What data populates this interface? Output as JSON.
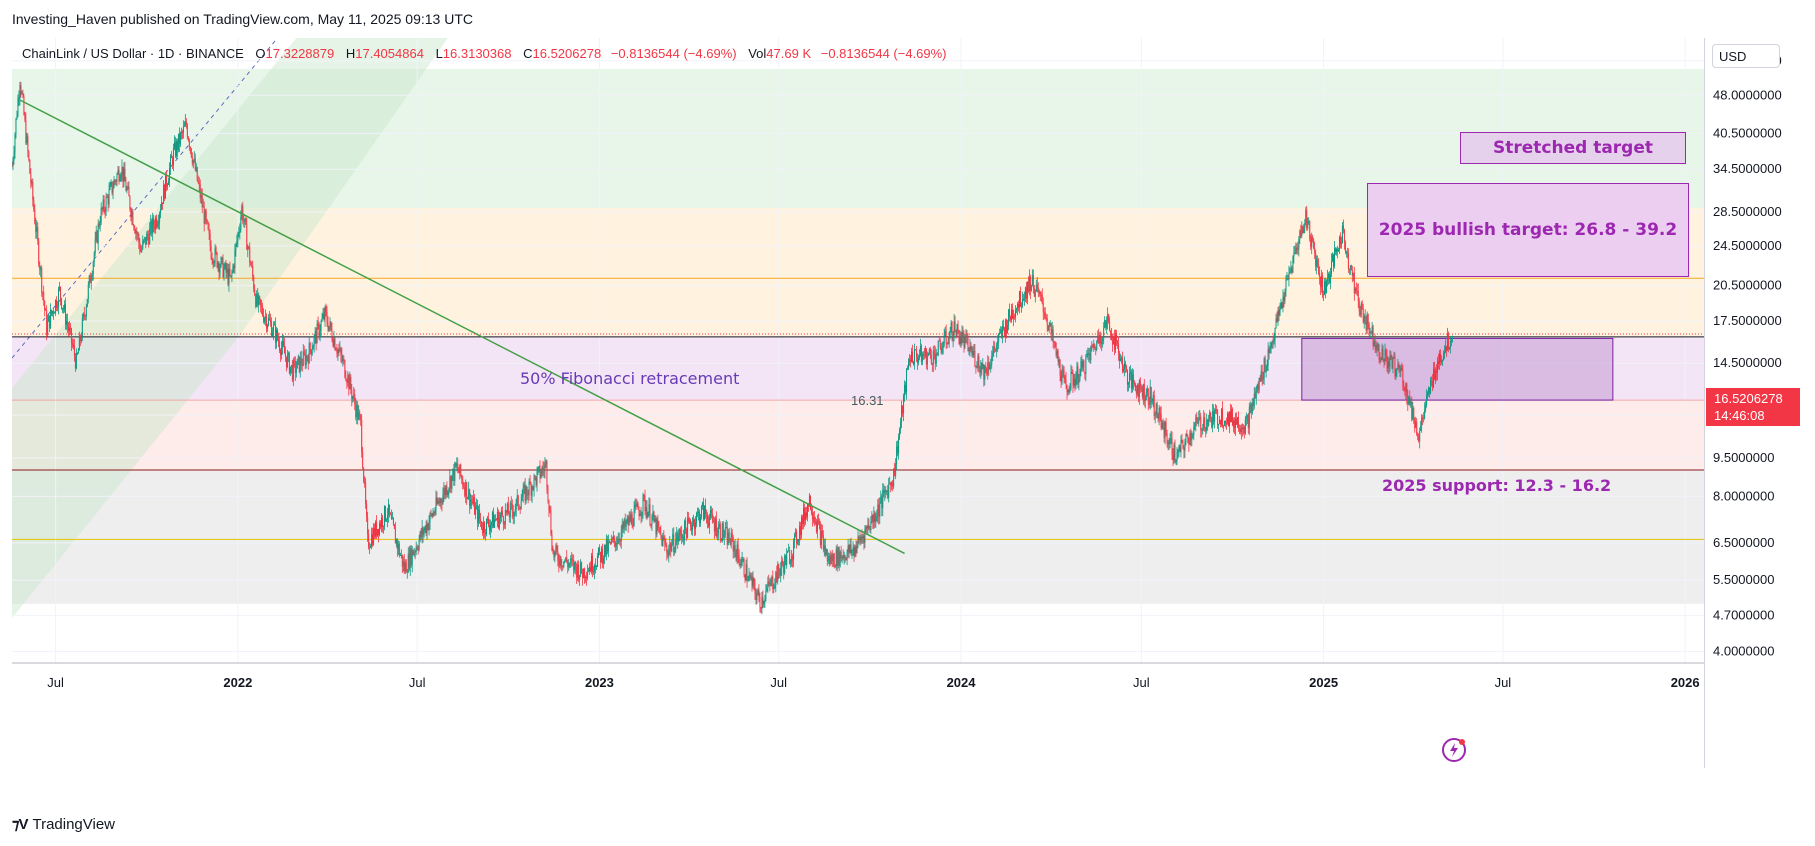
{
  "header": {
    "published": "Investing_Haven published on TradingView.com, May 11, 2025 09:13 UTC"
  },
  "legend": {
    "symbol": "ChainLink / US Dollar · 1D · BINANCE",
    "open_label": "O",
    "open": "17.3228879",
    "high_label": "H",
    "high": "17.4054864",
    "low_label": "L",
    "low": "16.3130368",
    "close_label": "C",
    "close": "16.5206278",
    "change": "−0.8136544 (−4.69%)",
    "vol_label": "Vol",
    "vol": "47.69 K",
    "vol_change": "−0.8136544 (−4.69%)"
  },
  "currency": "USD",
  "price_tag": {
    "price": "16.5206278",
    "countdown": "14:46:08"
  },
  "footer": {
    "brand": "TradingView"
  },
  "annotations": {
    "fib": "50% Fibonacci retracement",
    "fib_level": "16.31",
    "stretched": "Stretched target",
    "bullish": "2025 bullish target: 26.8 - 39.2",
    "support": "2025 support: 12.3 - 16.2"
  },
  "colors": {
    "up": "#089981",
    "down": "#f23645",
    "annotation": "#9c27b0",
    "trend": "#43a047"
  },
  "chart_data": {
    "type": "candlestick",
    "title": "ChainLink / US Dollar · 1D · BINANCE",
    "y_scale": "log",
    "ylim": [
      3.8,
      62
    ],
    "x_range": [
      "2021-05-18",
      "2026-01-20"
    ],
    "y_ticks": [
      "56.0000000",
      "48.0000000",
      "40.5000000",
      "34.5000000",
      "28.5000000",
      "24.5000000",
      "20.5000000",
      "17.5000000",
      "14.5000000",
      "11.5000000",
      "9.5000000",
      "8.0000000",
      "6.5000000",
      "5.5000000",
      "4.7000000",
      "4.0000000"
    ],
    "x_ticks": [
      {
        "date": "2021-07-01",
        "label": "Jul",
        "bold": false
      },
      {
        "date": "2022-01-01",
        "label": "2022",
        "bold": true
      },
      {
        "date": "2022-07-01",
        "label": "Jul",
        "bold": false
      },
      {
        "date": "2023-01-01",
        "label": "2023",
        "bold": true
      },
      {
        "date": "2023-07-01",
        "label": "Jul",
        "bold": false
      },
      {
        "date": "2024-01-01",
        "label": "2024",
        "bold": true
      },
      {
        "date": "2024-07-01",
        "label": "Jul",
        "bold": false
      },
      {
        "date": "2025-01-01",
        "label": "2025",
        "bold": true
      },
      {
        "date": "2025-07-01",
        "label": "Jul",
        "bold": false
      },
      {
        "date": "2026-01-01",
        "label": "2026",
        "bold": true
      }
    ],
    "price_path": [
      [
        "2021-05-18",
        35
      ],
      [
        "2021-05-26",
        52
      ],
      [
        "2021-06-05",
        34
      ],
      [
        "2021-06-22",
        17
      ],
      [
        "2021-07-05",
        20
      ],
      [
        "2021-07-22",
        14.5
      ],
      [
        "2021-08-15",
        28
      ],
      [
        "2021-09-05",
        35
      ],
      [
        "2021-09-25",
        24
      ],
      [
        "2021-10-12",
        28
      ],
      [
        "2021-10-28",
        37
      ],
      [
        "2021-11-10",
        42
      ],
      [
        "2021-12-05",
        24
      ],
      [
        "2021-12-25",
        21
      ],
      [
        "2022-01-05",
        29
      ],
      [
        "2022-01-20",
        19
      ],
      [
        "2022-02-05",
        17
      ],
      [
        "2022-02-25",
        14
      ],
      [
        "2022-03-12",
        15
      ],
      [
        "2022-03-30",
        18
      ],
      [
        "2022-04-20",
        14
      ],
      [
        "2022-05-05",
        11
      ],
      [
        "2022-05-12",
        6.5
      ],
      [
        "2022-06-01",
        7.5
      ],
      [
        "2022-06-18",
        5.8
      ],
      [
        "2022-07-10",
        7
      ],
      [
        "2022-08-10",
        9.1
      ],
      [
        "2022-09-05",
        7
      ],
      [
        "2022-10-05",
        7.5
      ],
      [
        "2022-11-08",
        9.2
      ],
      [
        "2022-11-15",
        6.2
      ],
      [
        "2022-12-15",
        5.7
      ],
      [
        "2023-01-15",
        6.5
      ],
      [
        "2023-02-15",
        7.8
      ],
      [
        "2023-03-10",
        6.3
      ],
      [
        "2023-04-15",
        7.5
      ],
      [
        "2023-05-15",
        6.5
      ],
      [
        "2023-06-12",
        5.0
      ],
      [
        "2023-07-15",
        6.3
      ],
      [
        "2023-08-01",
        7.9
      ],
      [
        "2023-08-20",
        6.0
      ],
      [
        "2023-09-15",
        6.3
      ],
      [
        "2023-10-10",
        7.6
      ],
      [
        "2023-10-25",
        8.8
      ],
      [
        "2023-11-10",
        15
      ],
      [
        "2023-12-05",
        15
      ],
      [
        "2023-12-25",
        17
      ],
      [
        "2024-01-25",
        14
      ],
      [
        "2024-02-20",
        18
      ],
      [
        "2024-03-12",
        21
      ],
      [
        "2024-03-25",
        18.5
      ],
      [
        "2024-04-15",
        13
      ],
      [
        "2024-05-01",
        14
      ],
      [
        "2024-05-28",
        17.5
      ],
      [
        "2024-06-18",
        13.5
      ],
      [
        "2024-07-10",
        12.5
      ],
      [
        "2024-08-05",
        9.5
      ],
      [
        "2024-08-25",
        11
      ],
      [
        "2024-09-20",
        11.5
      ],
      [
        "2024-10-15",
        11
      ],
      [
        "2024-11-10",
        16
      ],
      [
        "2024-12-01",
        23
      ],
      [
        "2024-12-14",
        28
      ],
      [
        "2025-01-01",
        20
      ],
      [
        "2025-01-20",
        26
      ],
      [
        "2025-02-05",
        19
      ],
      [
        "2025-03-01",
        15
      ],
      [
        "2025-03-20",
        14
      ],
      [
        "2025-04-07",
        10.5
      ],
      [
        "2025-04-25",
        14.5
      ],
      [
        "2025-05-11",
        16.5
      ]
    ],
    "levels": [
      {
        "price": 16.31,
        "label": "16.31",
        "color": "#131722"
      },
      {
        "price": 21.2,
        "color": "#f5a623"
      },
      {
        "price": 12.3,
        "color": "#f4a6a6"
      },
      {
        "price": 9.0,
        "color": "#8b1a1a"
      },
      {
        "price": 6.6,
        "color": "#e6c300"
      }
    ],
    "fib_zones": [
      {
        "from": 29,
        "to": 54,
        "color": "#e8f5e9"
      },
      {
        "from": 16.31,
        "to": 29,
        "color": "#fff3e0"
      },
      {
        "from": 12.3,
        "to": 16.31,
        "color": "#f3e5f5"
      },
      {
        "from": 9.0,
        "to": 12.3,
        "color": "#fdecea"
      },
      {
        "from": 4.95,
        "to": 9.0,
        "color": "#eeeeee"
      }
    ],
    "trendline": {
      "from": [
        "2021-05-26",
        47
      ],
      "to": [
        "2023-11-05",
        6.2
      ]
    },
    "boxes": [
      {
        "name": "stretched-target-box",
        "from": "2025-04-20",
        "to": "2025-12-25",
        "low": 41,
        "high": 48
      },
      {
        "name": "bullish-target-box",
        "from": "2025-03-20",
        "to": "2025-12-30",
        "low": 26.8,
        "high": 39.2
      },
      {
        "name": "support-box",
        "from": "2024-12-10",
        "to": "2025-10-20",
        "low": 12.3,
        "high": 16.2
      }
    ]
  }
}
